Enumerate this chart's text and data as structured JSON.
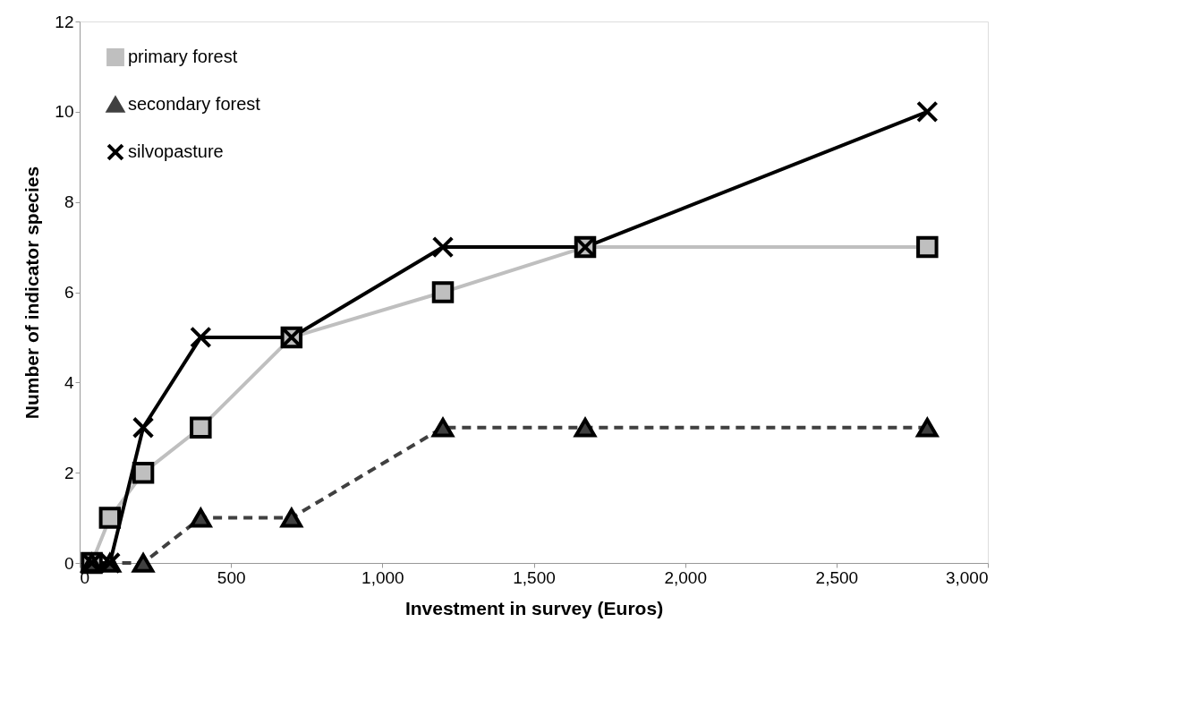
{
  "chart_data": {
    "type": "line",
    "xlabel": "Investment in survey (Euros)",
    "ylabel": "Number of indicator species",
    "x": [
      40,
      100,
      210,
      400,
      700,
      1200,
      1670,
      2800
    ],
    "series": [
      {
        "name": "primary forest",
        "color": "#bfbfbf",
        "marker": "square",
        "line_style": "solid",
        "values": [
          0,
          1,
          2,
          3,
          5,
          6,
          7,
          7
        ]
      },
      {
        "name": "secondary forest",
        "color": "#404040",
        "marker": "triangle",
        "line_style": "dashed",
        "values": [
          0,
          0,
          0,
          1,
          1,
          3,
          3,
          3
        ]
      },
      {
        "name": "silvopasture",
        "color": "#000000",
        "marker": "cross",
        "line_style": "solid",
        "values": [
          0,
          0,
          3,
          5,
          5,
          7,
          7,
          10
        ]
      }
    ],
    "xlim": [
      0,
      3000
    ],
    "ylim": [
      0,
      12
    ],
    "xticks": [
      0,
      500,
      {
        "value": 1000,
        "label": "1,000"
      },
      {
        "value": 1500,
        "label": "1,500"
      },
      {
        "value": 2000,
        "label": "2,000"
      },
      {
        "value": 2500,
        "label": "2,500"
      },
      {
        "value": 3000,
        "label": "3,000"
      }
    ],
    "yticks": [
      0,
      2,
      4,
      6,
      8,
      10,
      12
    ],
    "grid": false,
    "legend": "top left"
  }
}
